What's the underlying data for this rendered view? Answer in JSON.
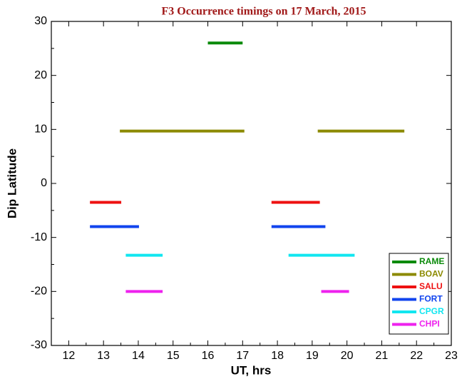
{
  "chart_data": {
    "type": "line",
    "title": "F3 Occurrence timings on 17 March, 2015",
    "x_label": "UT, hrs",
    "y_label": "Dip Latitude",
    "xlim": [
      11.5,
      23
    ],
    "ylim": [
      -30,
      30
    ],
    "xticks": [
      12,
      13,
      14,
      15,
      16,
      17,
      18,
      19,
      20,
      21,
      22,
      23
    ],
    "yticks": [
      -30,
      -20,
      -10,
      0,
      10,
      20,
      30
    ],
    "legend": "lower right",
    "series": [
      {
        "name": "RAME",
        "color": "#0a8a0a",
        "x": [
          16.0,
          17.0
        ],
        "values": [
          26,
          26
        ]
      },
      {
        "name": "BOAV",
        "color": "#8c8a00",
        "x": [
          13.47,
          17.05,
          null,
          19.16,
          21.65
        ],
        "values": [
          9.7,
          9.7,
          null,
          9.7,
          9.7
        ]
      },
      {
        "name": "SALU",
        "color": "#ee1111",
        "x": [
          12.61,
          13.51,
          null,
          17.83,
          19.22
        ],
        "values": [
          -3.5,
          -3.5,
          null,
          -3.5,
          -3.5
        ]
      },
      {
        "name": "FORT",
        "color": "#1144ee",
        "x": [
          12.61,
          14.02,
          null,
          17.83,
          19.38
        ],
        "values": [
          -8,
          -8,
          null,
          -8,
          -8
        ]
      },
      {
        "name": "CPGR",
        "color": "#11e6f0",
        "x": [
          13.64,
          14.7,
          null,
          18.32,
          20.22
        ],
        "values": [
          -13.3,
          -13.3,
          null,
          -13.3,
          -13.3
        ]
      },
      {
        "name": "CHPI",
        "color": "#ee22ee",
        "x": [
          13.64,
          14.7,
          null,
          19.26,
          20.06
        ],
        "values": [
          -20,
          -20,
          null,
          -20,
          -20
        ]
      }
    ]
  }
}
